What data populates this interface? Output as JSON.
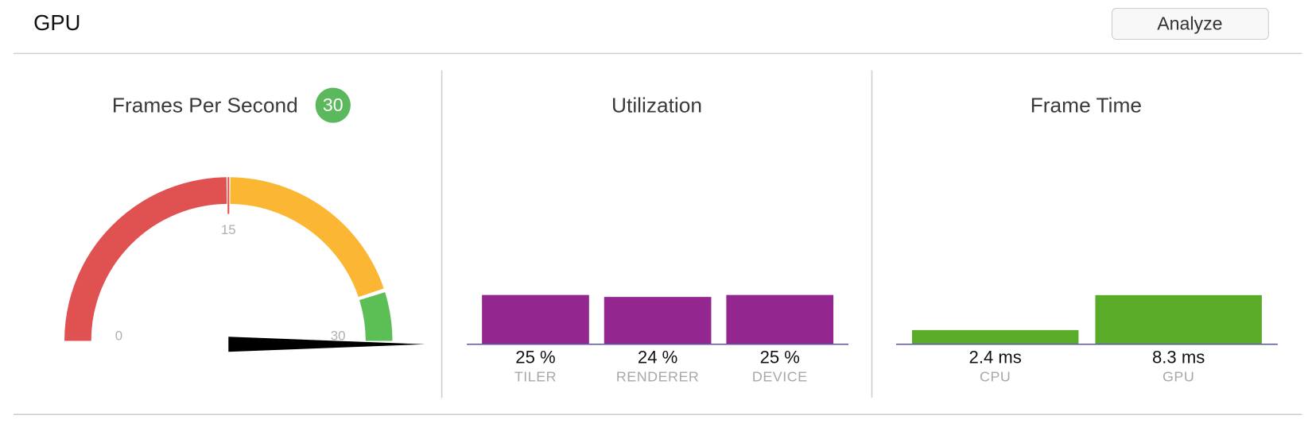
{
  "header": {
    "title": "GPU",
    "button": "Analyze"
  },
  "panels": {
    "fps": {
      "title": "Frames Per Second",
      "value": 30,
      "badge_color": "#5cb85c",
      "range": [
        0,
        30
      ],
      "ticks": [
        0,
        15,
        30
      ],
      "zones": [
        {
          "from": 0,
          "to": 15,
          "color": "#e05252"
        },
        {
          "from": 15,
          "to": 27,
          "color": "#fbb733"
        },
        {
          "from": 27,
          "to": 30,
          "color": "#5cbf55"
        }
      ],
      "needle_color": "#000000"
    },
    "utilization": {
      "title": "Utilization",
      "color": "#93278f",
      "ylim": [
        0,
        100
      ],
      "bars": [
        {
          "label": "TILER",
          "value": 25,
          "value_label": "25 %"
        },
        {
          "label": "RENDERER",
          "value": 24,
          "value_label": "24 %"
        },
        {
          "label": "DEVICE",
          "value": 25,
          "value_label": "25 %"
        }
      ]
    },
    "frame_time": {
      "title": "Frame Time",
      "color": "#5aab27",
      "ylim": [
        0,
        33.3
      ],
      "bars": [
        {
          "label": "CPU",
          "value": 2.4,
          "value_label": "2.4 ms"
        },
        {
          "label": "GPU",
          "value": 8.3,
          "value_label": "8.3 ms"
        }
      ]
    }
  }
}
